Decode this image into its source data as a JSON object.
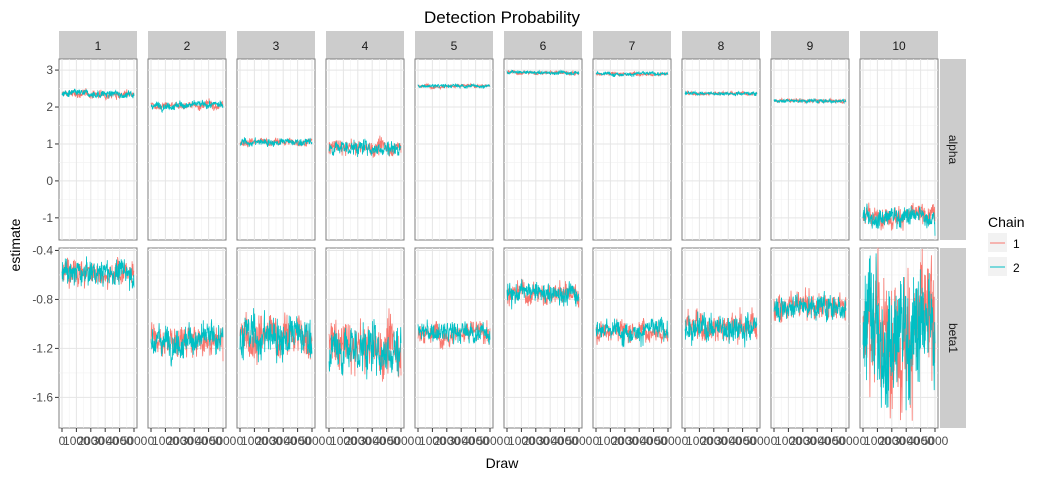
{
  "chart_data": {
    "type": "line",
    "title": "Detection Probability",
    "xlabel": "Draw",
    "ylabel": "estimate",
    "x_ticks": [
      0,
      1000,
      2000,
      3000,
      4000,
      5000
    ],
    "x_tick_labels": [
      "0",
      "1000",
      "2000",
      "3000",
      "4000",
      "5000"
    ],
    "xlim": [
      0,
      5000
    ],
    "facet_columns": [
      "1",
      "2",
      "3",
      "4",
      "5",
      "6",
      "7",
      "8",
      "9",
      "10"
    ],
    "facet_rows": [
      {
        "label": "alpha",
        "ylim": [
          -1.6,
          3.3
        ],
        "y_ticks": [
          -1,
          0,
          1,
          2,
          3
        ],
        "y_tick_labels": [
          "-1",
          "0",
          "1",
          "2",
          "3"
        ]
      },
      {
        "label": "beta1",
        "ylim": [
          -1.85,
          -0.38
        ],
        "y_ticks": [
          -1.6,
          -1.2,
          -0.8,
          -0.4
        ],
        "y_tick_labels": [
          "-1.6",
          "-1.2",
          "-0.8",
          "-0.4"
        ]
      }
    ],
    "legend": {
      "title": "Chain",
      "position": "right",
      "entries": [
        "1",
        "2"
      ]
    },
    "series_colors": {
      "1": "#F8766D",
      "2": "#00BFC4"
    },
    "grid": true,
    "panels": [
      {
        "row": "alpha",
        "col": "1",
        "center": 2.35,
        "spread": 0.06
      },
      {
        "row": "alpha",
        "col": "2",
        "center": 2.05,
        "spread": 0.06
      },
      {
        "row": "alpha",
        "col": "3",
        "center": 1.05,
        "spread": 0.06
      },
      {
        "row": "alpha",
        "col": "4",
        "center": 0.9,
        "spread": 0.12
      },
      {
        "row": "alpha",
        "col": "5",
        "center": 2.57,
        "spread": 0.03
      },
      {
        "row": "alpha",
        "col": "6",
        "center": 2.93,
        "spread": 0.03
      },
      {
        "row": "alpha",
        "col": "7",
        "center": 2.9,
        "spread": 0.03
      },
      {
        "row": "alpha",
        "col": "8",
        "center": 2.37,
        "spread": 0.03
      },
      {
        "row": "alpha",
        "col": "9",
        "center": 2.17,
        "spread": 0.03
      },
      {
        "row": "alpha",
        "col": "10",
        "center": -0.95,
        "spread": 0.15
      },
      {
        "row": "beta1",
        "col": "1",
        "center": -0.58,
        "spread": 0.06
      },
      {
        "row": "beta1",
        "col": "2",
        "center": -1.13,
        "spread": 0.07
      },
      {
        "row": "beta1",
        "col": "3",
        "center": -1.1,
        "spread": 0.1
      },
      {
        "row": "beta1",
        "col": "4",
        "center": -1.2,
        "spread": 0.12
      },
      {
        "row": "beta1",
        "col": "5",
        "center": -1.07,
        "spread": 0.05
      },
      {
        "row": "beta1",
        "col": "6",
        "center": -0.75,
        "spread": 0.05
      },
      {
        "row": "beta1",
        "col": "7",
        "center": -1.05,
        "spread": 0.05
      },
      {
        "row": "beta1",
        "col": "8",
        "center": -1.02,
        "spread": 0.07
      },
      {
        "row": "beta1",
        "col": "9",
        "center": -0.85,
        "spread": 0.06
      },
      {
        "row": "beta1",
        "col": "10",
        "center": -1.05,
        "spread": 0.28
      }
    ]
  }
}
